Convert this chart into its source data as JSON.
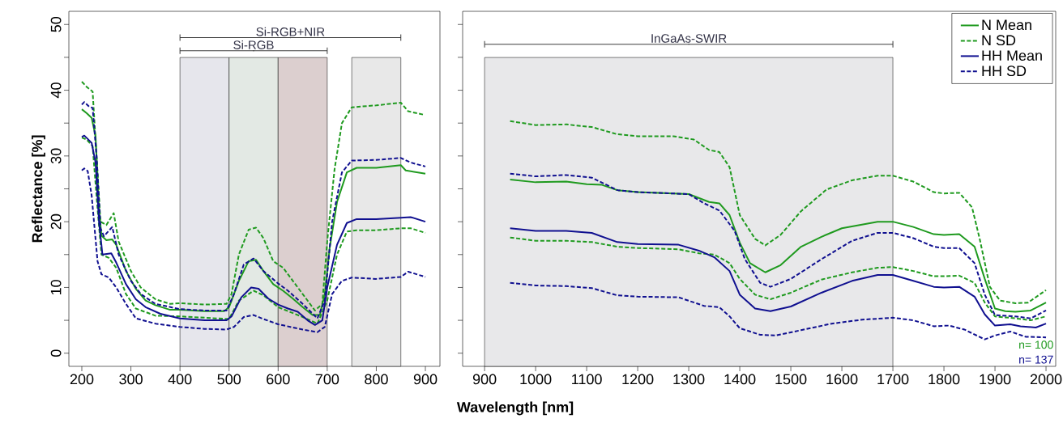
{
  "chart_data": [
    {
      "type": "line",
      "ylabel": "Reflectance [%]",
      "xlim": [
        173.6,
        929.7
      ],
      "ylim": [
        -2,
        52
      ],
      "xticks": [
        200,
        300,
        400,
        500,
        600,
        700,
        800,
        900
      ],
      "yticks": [
        0,
        {
          "value": 5,
          "label": null
        },
        10,
        {
          "value": 15,
          "label": null
        },
        20,
        {
          "value": 25,
          "label": null
        },
        30,
        {
          "value": 35,
          "label": null
        },
        40,
        {
          "value": 45,
          "label": null
        },
        50
      ],
      "bands": [
        {
          "axis": "x",
          "from": 400,
          "to": 500,
          "color": "#e6e6ec"
        },
        {
          "axis": "x",
          "from": 500,
          "to": 600,
          "color": "#e3e9e4"
        },
        {
          "axis": "x",
          "from": 600,
          "to": 700,
          "color": "#dccfcf"
        },
        {
          "axis": "x",
          "from": 750,
          "to": 850,
          "color": "#e8e8e8"
        }
      ],
      "annotations": [
        {
          "text": "Si-RGB",
          "x": 550,
          "y": 46
        },
        {
          "text": "Si-RGB+NIR",
          "x": 625,
          "y": 48
        }
      ],
      "series": [
        {
          "type": "scatter",
          "marker": "none",
          "color": "#3c3c3c",
          "x": [
            550,
            625
          ],
          "values": [
            46,
            48
          ],
          "xerrors": [
            [
              400,
              700
            ],
            [
              400,
              850
            ]
          ]
        },
        {
          "color": "#1f9a1f",
          "line_style": "solid",
          "x": [
            200,
            210,
            220,
            228,
            235,
            240,
            250,
            262,
            270,
            290,
            310,
            330,
            350,
            380,
            400,
            450,
            490,
            500,
            520,
            540,
            555,
            570,
            590,
            610,
            630,
            650,
            670,
            685,
            695,
            705,
            720,
            740,
            760,
            800,
            850,
            860,
            900
          ],
          "values": [
            37.1,
            36.5,
            35.8,
            33,
            22,
            17.9,
            17.2,
            17.3,
            16.5,
            12.5,
            9.8,
            8,
            7.3,
            6.6,
            6.6,
            6.4,
            6.4,
            7,
            11,
            14,
            14.2,
            12.5,
            10.5,
            9.5,
            8.3,
            7,
            5.8,
            5.8,
            9,
            16,
            23,
            27.5,
            28.2,
            28.2,
            28.6,
            27.8,
            27.3
          ]
        },
        {
          "color": "#1f9a1f",
          "line_style": "dashed",
          "x": [
            200,
            210,
            222,
            230,
            238,
            250,
            265,
            275,
            300,
            320,
            350,
            380,
            400,
            450,
            495,
            505,
            520,
            540,
            555,
            570,
            590,
            610,
            630,
            650,
            675,
            690,
            700,
            715,
            730,
            750,
            800,
            850,
            865,
            895
          ],
          "values": [
            41.3,
            40.5,
            39.8,
            30,
            20,
            19.5,
            21.3,
            17,
            12.5,
            10,
            8.2,
            7.5,
            7.6,
            7.4,
            7.5,
            9,
            15,
            18.8,
            19.1,
            17.5,
            14,
            13,
            11,
            9,
            6.5,
            7.5,
            17,
            28,
            35,
            37.4,
            37.7,
            38.1,
            36.8,
            36.3
          ]
        },
        {
          "color": "#1f9a1f",
          "line_style": "dashed",
          "x": [
            200,
            210,
            222,
            232,
            240,
            255,
            270,
            290,
            310,
            350,
            400,
            450,
            500,
            520,
            550,
            570,
            600,
            650,
            680,
            700,
            720,
            740,
            760,
            800,
            850,
            870,
            900
          ],
          "values": [
            32.8,
            32.5,
            31.5,
            22,
            15,
            14.5,
            13,
            9,
            6.8,
            5.7,
            5.6,
            5.4,
            5.2,
            8,
            9.5,
            8.8,
            7,
            5.5,
            4.5,
            8,
            15,
            18.5,
            18.7,
            18.7,
            19,
            19,
            18.3
          ]
        },
        {
          "color": "#101090",
          "line_style": "solid",
          "x": [
            200,
            205,
            220,
            228,
            235,
            242,
            260,
            270,
            290,
            310,
            330,
            360,
            400,
            450,
            495,
            505,
            525,
            545,
            560,
            580,
            600,
            620,
            640,
            660,
            675,
            690,
            700,
            720,
            740,
            760,
            800,
            850,
            870,
            900
          ],
          "values": [
            32.9,
            33.1,
            32,
            29,
            20,
            15,
            15.2,
            13.8,
            10.5,
            8.2,
            7,
            6,
            5.3,
            5,
            5,
            5.6,
            8.5,
            10,
            9.8,
            8.3,
            7.4,
            6.8,
            6.3,
            5,
            4.3,
            5,
            10,
            16.5,
            19.8,
            20.4,
            20.4,
            20.6,
            20.7,
            20
          ]
        },
        {
          "color": "#101090",
          "line_style": "dashed",
          "x": [
            200,
            205,
            215,
            222,
            230,
            238,
            245,
            262,
            275,
            300,
            320,
            350,
            400,
            450,
            495,
            510,
            530,
            550,
            570,
            600,
            620,
            650,
            680,
            695,
            710,
            730,
            750,
            800,
            850,
            870,
            900
          ],
          "values": [
            37.8,
            38.2,
            37.5,
            37.3,
            30,
            19,
            17.8,
            19.2,
            15,
            11,
            9,
            7.5,
            6.7,
            6.5,
            6.5,
            9,
            13.5,
            14.4,
            12.5,
            10.6,
            9.5,
            7.5,
            5.3,
            8,
            20,
            27.5,
            29.3,
            29.4,
            29.7,
            29,
            28.4
          ]
        },
        {
          "color": "#101090",
          "line_style": "dashed",
          "x": [
            200,
            205,
            212,
            220,
            232,
            240,
            255,
            270,
            290,
            310,
            350,
            400,
            450,
            495,
            510,
            530,
            550,
            570,
            600,
            650,
            680,
            695,
            710,
            730,
            750,
            800,
            850,
            865,
            900
          ],
          "values": [
            27.8,
            28.1,
            27.7,
            24,
            14,
            12,
            11.5,
            10,
            7.5,
            5.3,
            4.5,
            4,
            3.7,
            3.6,
            4,
            5.5,
            5.8,
            5.2,
            4.4,
            3.6,
            3.2,
            4,
            9,
            11,
            11.5,
            11.3,
            11.6,
            12.4,
            11.6
          ]
        }
      ]
    },
    {
      "type": "line",
      "xlabel": "Wavelength [nm]",
      "xlim": [
        857,
        2019
      ],
      "ylim": [
        -2,
        52
      ],
      "tick_labels": "x",
      "legend": "top right",
      "xticks": [
        900,
        1000,
        1100,
        1200,
        1300,
        1400,
        1500,
        1600,
        1700,
        1800,
        1900,
        2000
      ],
      "yticks": [
        0,
        {
          "value": 5,
          "label": null
        },
        10,
        {
          "value": 15,
          "label": null
        },
        20,
        {
          "value": 25,
          "label": null
        },
        30,
        {
          "value": 35,
          "label": null
        },
        40,
        {
          "value": 45,
          "label": null
        },
        50
      ],
      "bands": [
        {
          "axis": "x",
          "from": 900,
          "to": 1700,
          "color": "#e8e8ea"
        }
      ],
      "annotations": [
        {
          "text": "InGaAs-SWIR",
          "x": 1300,
          "y": 47
        },
        "n= 100",
        "n= 137"
      ],
      "series": [
        {
          "type": "scatter",
          "marker": "none",
          "color": "#3c3c3c",
          "x": [
            1300
          ],
          "values": [
            47
          ],
          "xerrors": [
            [
              900,
              1700
            ]
          ]
        },
        {
          "name": "N Mean",
          "color": "#1f9a1f",
          "line_style": "solid",
          "x": [
            950,
            1000,
            1060,
            1100,
            1130,
            1160,
            1200,
            1300,
            1340,
            1360,
            1380,
            1400,
            1420,
            1450,
            1480,
            1520,
            1560,
            1600,
            1670,
            1700,
            1740,
            1780,
            1800,
            1830,
            1860,
            1880,
            1900,
            1920,
            1940,
            1970,
            2000
          ],
          "values": [
            26.4,
            26,
            26.1,
            25.7,
            25.6,
            24.8,
            24.5,
            24.2,
            23,
            22.8,
            21,
            16.8,
            13.7,
            12.3,
            13.4,
            16.2,
            17.7,
            19,
            20,
            20,
            19.2,
            18.1,
            18,
            18.1,
            16.2,
            11.3,
            6.8,
            6.4,
            6.3,
            6.5,
            7.7
          ]
        },
        {
          "name": "N SD",
          "color": "#1f9a1f",
          "line_style": "dashed",
          "x": [
            950,
            1000,
            1060,
            1110,
            1160,
            1200,
            1270,
            1310,
            1340,
            1360,
            1380,
            1400,
            1430,
            1450,
            1480,
            1520,
            1570,
            1620,
            1670,
            1700,
            1740,
            1780,
            1800,
            1830,
            1855,
            1870,
            1890,
            1910,
            1940,
            1965,
            2000
          ],
          "values": [
            35.3,
            34.7,
            34.8,
            34.4,
            33.3,
            33,
            33,
            32.5,
            30.9,
            30.6,
            28.3,
            21,
            17.4,
            16.4,
            18,
            21.6,
            24.9,
            26.3,
            27,
            27,
            26.1,
            24.5,
            24.3,
            24.4,
            22.2,
            17.4,
            10.1,
            8,
            7.6,
            7.7,
            9.6
          ]
        },
        {
          "color": "#1f9a1f",
          "line_style": "dashed",
          "x": [
            950,
            1000,
            1060,
            1110,
            1160,
            1200,
            1280,
            1320,
            1350,
            1380,
            1400,
            1430,
            1460,
            1500,
            1560,
            1620,
            1670,
            1700,
            1740,
            1780,
            1800,
            1830,
            1860,
            1880,
            1900,
            1940,
            1970,
            2000
          ],
          "values": [
            17.6,
            17.1,
            17.1,
            16.9,
            16.2,
            16,
            15.8,
            15.2,
            15,
            13.7,
            11.3,
            8.9,
            8.2,
            9.2,
            11.2,
            12.3,
            13,
            13.1,
            12.5,
            11.7,
            11.7,
            11.8,
            10.7,
            7.7,
            5.6,
            5.3,
            5,
            5.6
          ]
        },
        {
          "name": "HH Mean",
          "color": "#101090",
          "line_style": "solid",
          "x": [
            950,
            1000,
            1060,
            1110,
            1160,
            1200,
            1280,
            1320,
            1350,
            1380,
            1400,
            1430,
            1460,
            1500,
            1560,
            1620,
            1670,
            1700,
            1740,
            1780,
            1800,
            1830,
            1860,
            1880,
            1900,
            1930,
            1950,
            1980,
            2000
          ],
          "values": [
            19,
            18.6,
            18.6,
            18.3,
            16.9,
            16.6,
            16.5,
            15.6,
            14.6,
            12.5,
            8.9,
            6.8,
            6.4,
            7.1,
            9.2,
            11,
            11.9,
            11.9,
            11,
            10.1,
            10,
            10.1,
            8.6,
            5.9,
            4.2,
            4.4,
            4.1,
            3.9,
            4.5
          ]
        },
        {
          "name": "HH SD",
          "color": "#101090",
          "line_style": "dashed",
          "x": [
            950,
            1000,
            1060,
            1110,
            1160,
            1200,
            1300,
            1330,
            1360,
            1390,
            1410,
            1440,
            1460,
            1500,
            1560,
            1620,
            1670,
            1700,
            1740,
            1780,
            1800,
            1830,
            1860,
            1880,
            1900,
            1940,
            1970,
            2000
          ],
          "values": [
            27.3,
            26.9,
            27.1,
            26.7,
            24.8,
            24.5,
            24.2,
            22.8,
            21.7,
            18.6,
            14.3,
            10.7,
            10.1,
            11.3,
            14.3,
            17.1,
            18.3,
            18.3,
            17.5,
            16.2,
            16,
            16,
            13.7,
            8.9,
            5.8,
            5.6,
            5.3,
            6.5
          ]
        },
        {
          "color": "#101090",
          "line_style": "dashed",
          "x": [
            950,
            1000,
            1060,
            1110,
            1160,
            1200,
            1280,
            1330,
            1360,
            1380,
            1400,
            1440,
            1470,
            1520,
            1580,
            1640,
            1700,
            1740,
            1780,
            1810,
            1840,
            1880,
            1900,
            1930,
            1960,
            2000
          ],
          "values": [
            10.7,
            10.3,
            10.2,
            9.9,
            8.8,
            8.6,
            8.5,
            7.2,
            7,
            5.6,
            3.8,
            2.8,
            2.7,
            3.5,
            4.5,
            5.1,
            5.4,
            5,
            4.1,
            4.2,
            3.6,
            2.1,
            2.7,
            3.3,
            2.5,
            2.4
          ]
        }
      ]
    }
  ]
}
